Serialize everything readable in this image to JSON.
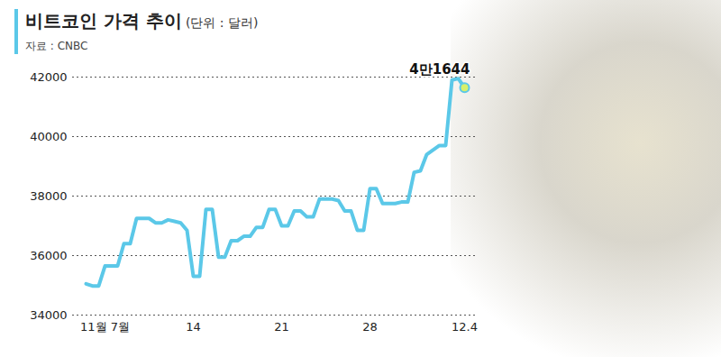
{
  "chart_data": {
    "type": "line",
    "title": "비트코인 가격 추이",
    "subtitle": "(단위 : 달러)",
    "source": "자료 : CNBC",
    "categories": [
      null,
      null,
      null,
      "11월 7월",
      null,
      null,
      null,
      null,
      null,
      null,
      null,
      null,
      null,
      null,
      null,
      null,
      null,
      "14",
      null,
      null,
      null,
      null,
      null,
      null,
      null,
      null,
      null,
      null,
      null,
      null,
      null,
      "21",
      null,
      null,
      null,
      null,
      null,
      null,
      null,
      null,
      null,
      null,
      null,
      null,
      null,
      "28",
      null,
      null,
      null,
      null,
      null,
      null,
      null,
      null,
      null,
      null,
      null,
      null,
      null,
      null,
      "12.4"
    ],
    "values": [
      35050,
      34980,
      34980,
      35650,
      35650,
      35650,
      36400,
      36400,
      37250,
      37250,
      37250,
      37100,
      37100,
      37200,
      37150,
      37100,
      36850,
      35300,
      35300,
      37550,
      37550,
      35950,
      35950,
      36500,
      36500,
      36650,
      36650,
      36950,
      36950,
      37550,
      37550,
      37000,
      37000,
      37500,
      37500,
      37300,
      37300,
      37900,
      37900,
      37900,
      37850,
      37500,
      37500,
      36850,
      36850,
      38250,
      38250,
      37750,
      37750,
      37750,
      37800,
      37800,
      38800,
      38850,
      39400,
      39550,
      39700,
      39700,
      41900,
      41950,
      41644
    ],
    "value_labels": [
      null,
      null,
      null,
      null,
      null,
      null,
      null,
      null,
      null,
      null,
      null,
      null,
      null,
      null,
      null,
      null,
      null,
      null,
      null,
      null,
      null,
      null,
      null,
      null,
      null,
      null,
      null,
      null,
      null,
      null,
      null,
      null,
      null,
      null,
      null,
      null,
      null,
      null,
      null,
      null,
      null,
      null,
      null,
      null,
      null,
      null,
      null,
      null,
      null,
      null,
      null,
      null,
      null,
      null,
      null,
      null,
      null,
      null,
      null,
      null,
      "4만1644"
    ],
    "data_labels": true,
    "color": "#5bc8e8",
    "ylim": [
      34000,
      42000
    ],
    "yticks": [
      34000,
      36000,
      38000,
      40000,
      42000
    ],
    "grid": true
  }
}
